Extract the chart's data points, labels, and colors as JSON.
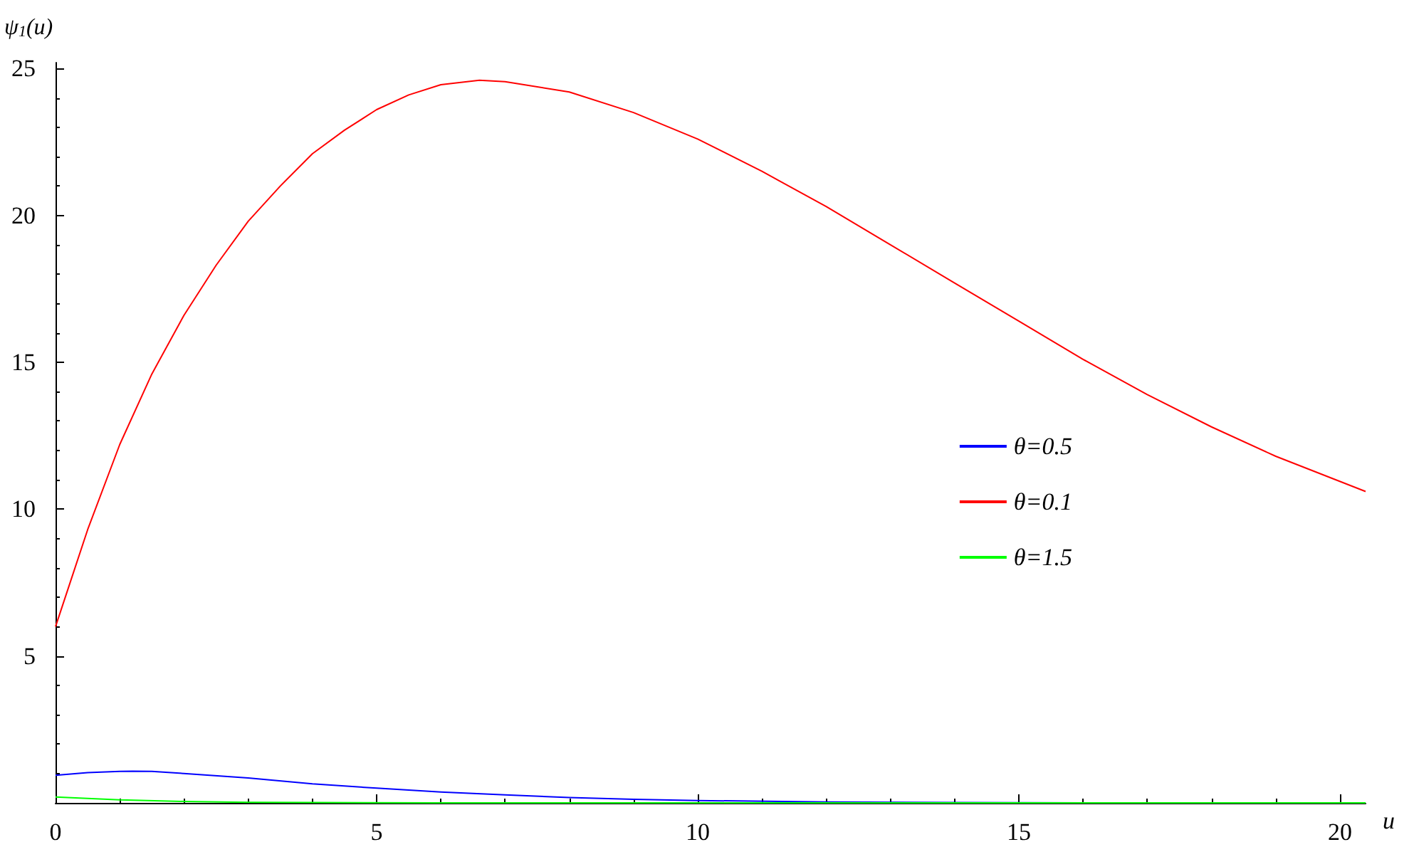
{
  "chart_data": {
    "type": "line",
    "xlabel": "u",
    "ylabel": "ψ$_{1}$(u)",
    "xlim": [
      0,
      20.4
    ],
    "ylim": [
      0,
      25.2
    ],
    "xticks": [
      0,
      5,
      10,
      15,
      20
    ],
    "yticks": [
      5,
      10,
      15,
      20,
      25
    ],
    "grid": false,
    "legend": "right",
    "marker": "none",
    "line_style": "solid",
    "series": [
      {
        "name": "θ=0.5",
        "color": "#0000ff",
        "x": [
          0,
          0.5,
          1,
          1.2,
          1.5,
          2,
          3,
          4,
          5,
          6,
          7,
          8,
          9,
          10,
          12,
          14,
          16,
          20.4
        ],
        "values": [
          0.94,
          1.03,
          1.07,
          1.08,
          1.07,
          1.0,
          0.85,
          0.65,
          0.5,
          0.37,
          0.27,
          0.18,
          0.12,
          0.08,
          0.03,
          0.01,
          0,
          0
        ]
      },
      {
        "name": "θ=0.1",
        "color": "#ff0000",
        "x": [
          0,
          0.5,
          1,
          1.5,
          2,
          2.5,
          3,
          3.5,
          4,
          4.5,
          5,
          5.5,
          6,
          6.6,
          7,
          8,
          9,
          10,
          11,
          12,
          13,
          14,
          15,
          16,
          17,
          18,
          19,
          20.4
        ],
        "values": [
          6.0,
          9.3,
          12.2,
          14.6,
          16.6,
          18.3,
          19.8,
          21.0,
          22.1,
          22.9,
          23.6,
          24.1,
          24.45,
          24.6,
          24.55,
          24.2,
          23.5,
          22.6,
          21.5,
          20.3,
          19.0,
          17.7,
          16.4,
          15.1,
          13.9,
          12.8,
          11.8,
          10.6
        ]
      },
      {
        "name": "θ=1.5",
        "color": "#00ff00",
        "x": [
          0,
          0.5,
          1,
          2,
          3,
          4,
          6,
          20.4
        ],
        "values": [
          0.2,
          0.15,
          0.1,
          0.05,
          0.02,
          0.01,
          0,
          0
        ]
      }
    ]
  }
}
